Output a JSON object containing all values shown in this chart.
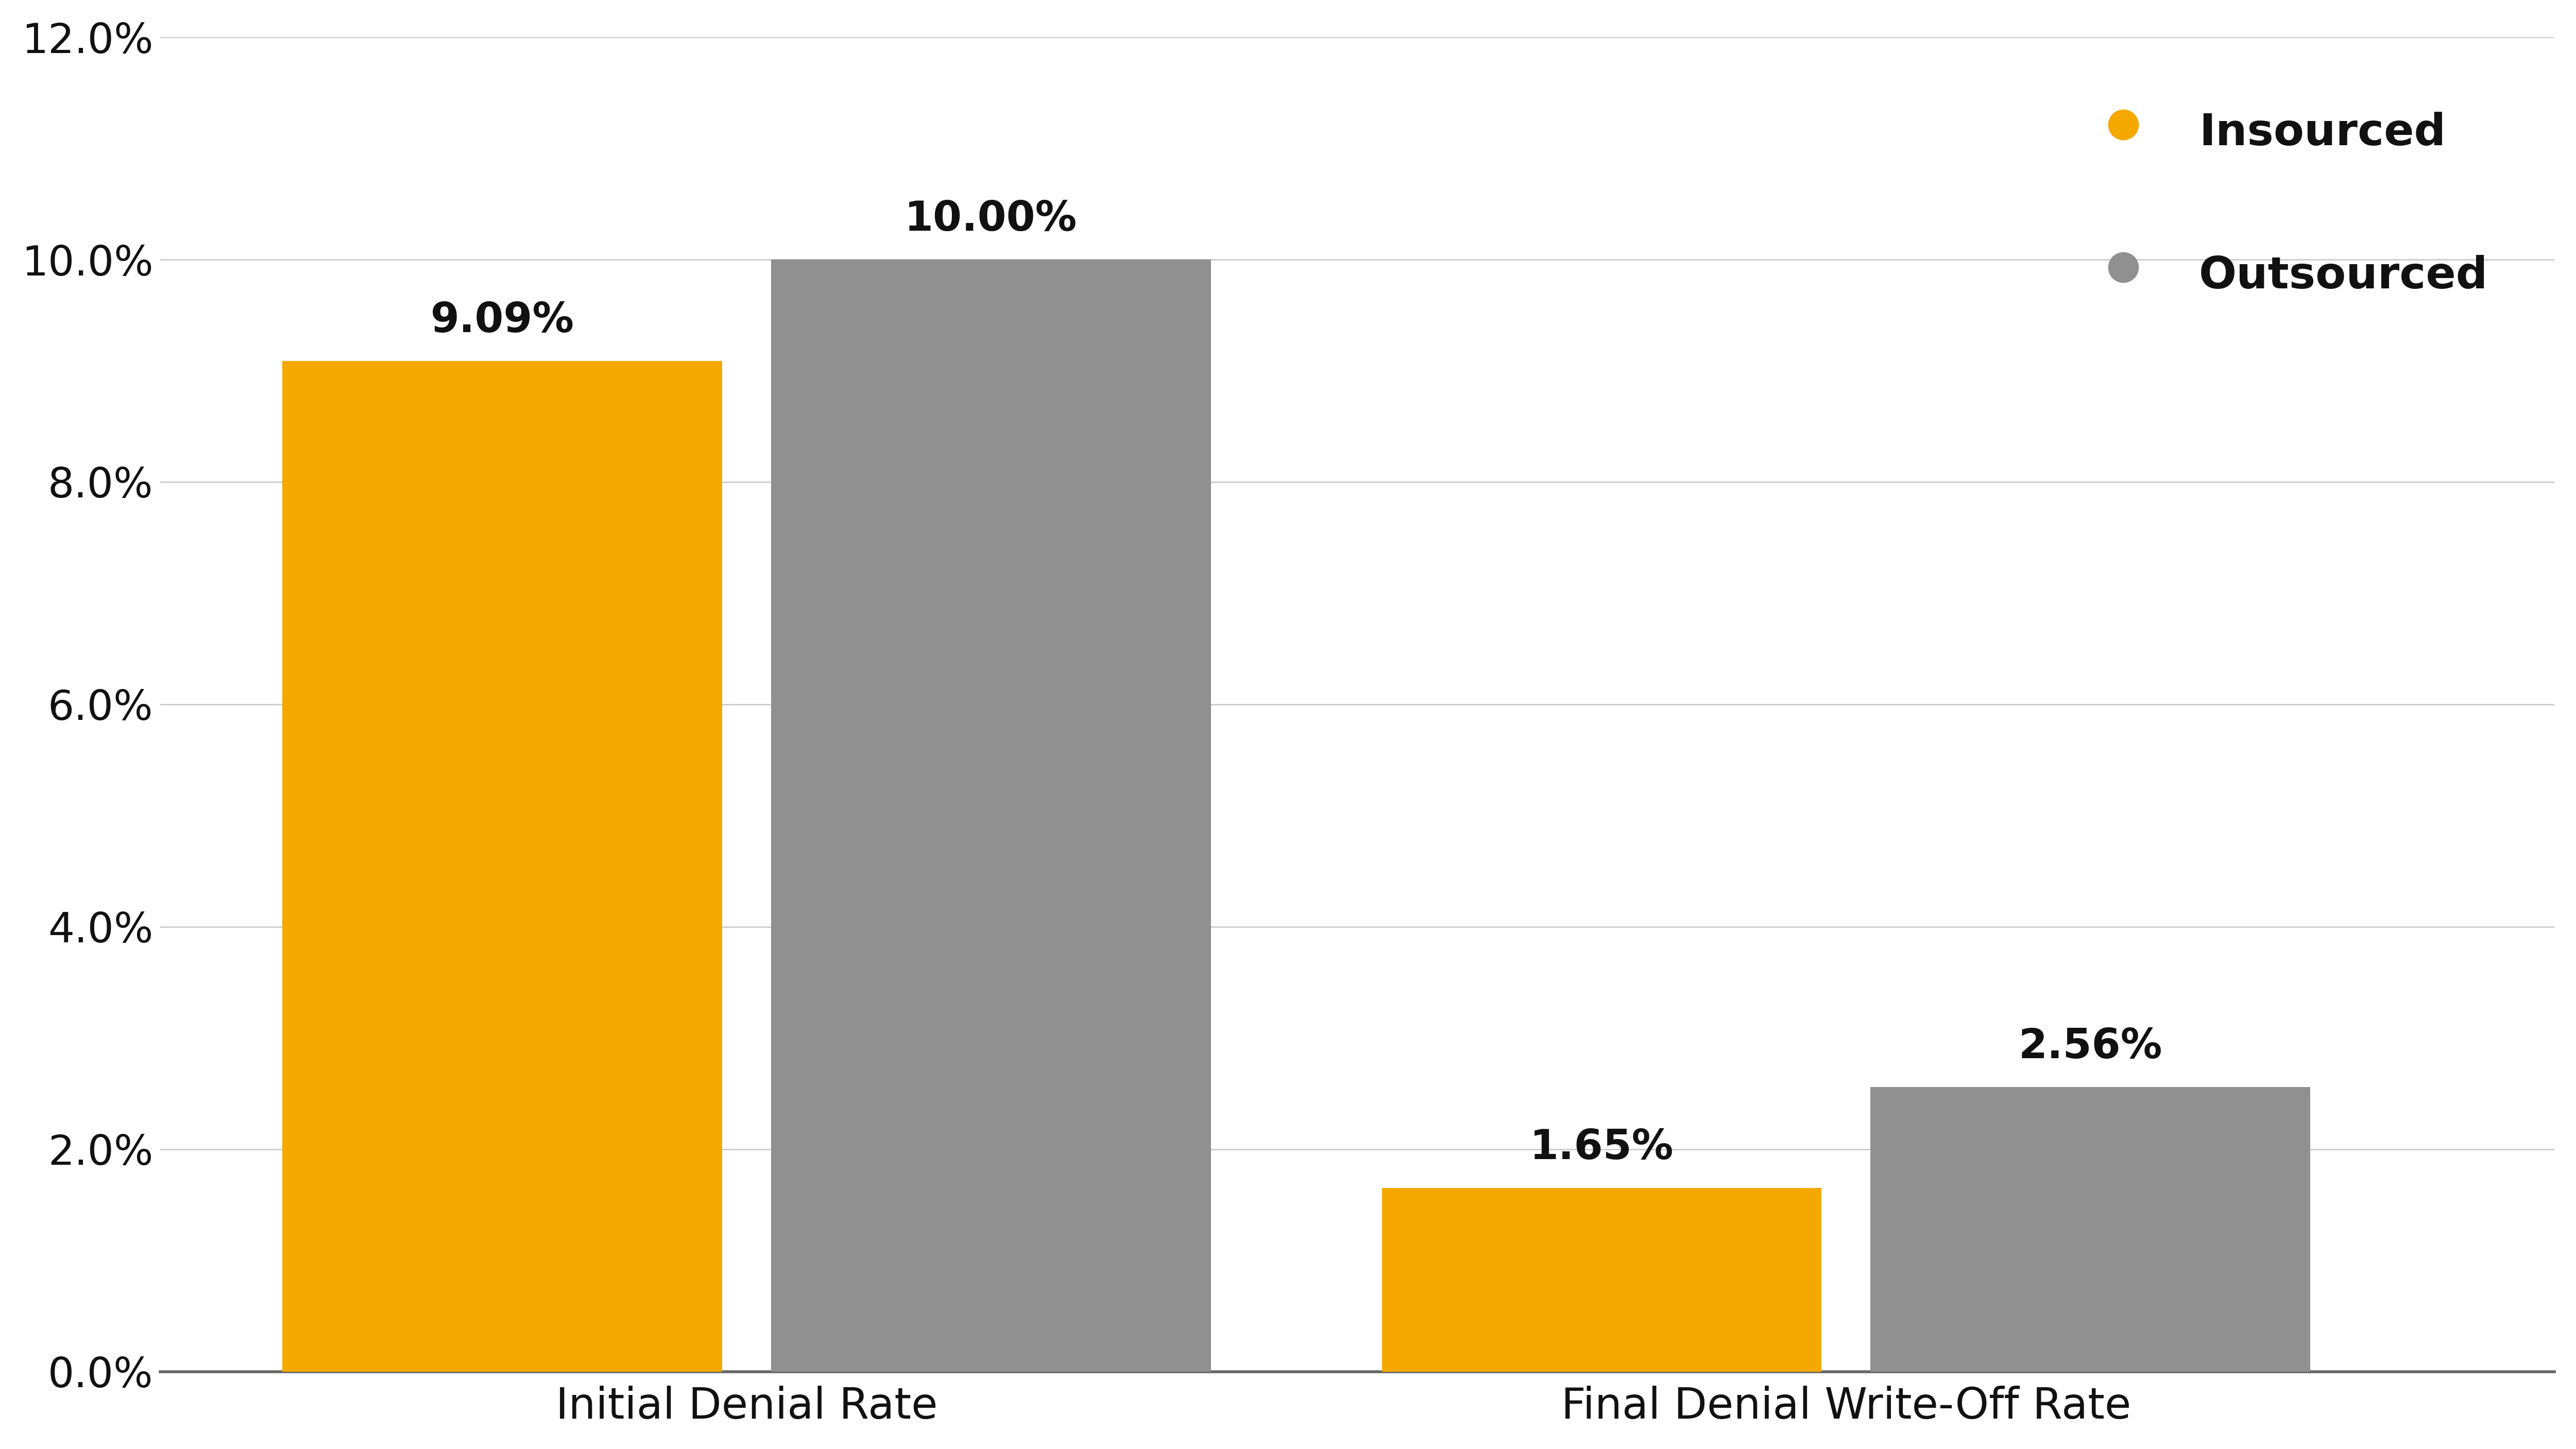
{
  "categories": [
    "Initial Denial Rate",
    "Final Denial Write-Off Rate"
  ],
  "insourced_values": [
    0.0909,
    0.0165
  ],
  "outsourced_values": [
    0.1,
    0.0256
  ],
  "insourced_labels": [
    "9.09%",
    "1.65%"
  ],
  "outsourced_labels": [
    "10.00%",
    "2.56%"
  ],
  "insourced_color": "#F5A800",
  "outsourced_color": "#909090",
  "background_color": "#FFFFFF",
  "ylim": [
    0,
    0.12
  ],
  "yticks": [
    0.0,
    0.02,
    0.04,
    0.06,
    0.08,
    0.1,
    0.12
  ],
  "ytick_labels": [
    "0.0%",
    "2.0%",
    "4.0%",
    "6.0%",
    "8.0%",
    "10.0%",
    "12.0%"
  ],
  "legend_insourced": "Insourced",
  "legend_outsourced": "Outsourced",
  "bar_width": 0.18,
  "x_positions": [
    0.3,
    0.75
  ],
  "tick_fontsize": 58,
  "legend_fontsize": 62,
  "annotation_fontsize": 58,
  "xlabel_fontsize": 60,
  "bottom_spine_color": "#666666",
  "grid_color": "#cccccc",
  "text_color": "#111111"
}
